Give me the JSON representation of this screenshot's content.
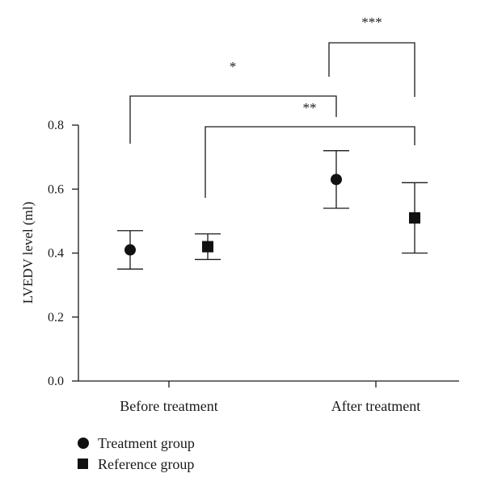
{
  "chart_data": {
    "type": "scatter",
    "title": "",
    "ylabel": "LVEDV level (ml)",
    "xlabel": "",
    "ylim": [
      0.0,
      0.8
    ],
    "yticks": [
      "0.0",
      "0.2",
      "0.4",
      "0.6",
      "0.8"
    ],
    "categories": [
      "Before treatment",
      "After treatment"
    ],
    "grid": false,
    "legend_position": "bottom-left",
    "series": [
      {
        "name": "Treatment group",
        "marker": "circle",
        "color": "#111111",
        "values": [
          0.41,
          0.63
        ],
        "error_low": [
          0.35,
          0.54
        ],
        "error_high": [
          0.47,
          0.72
        ]
      },
      {
        "name": "Reference group",
        "marker": "square",
        "color": "#111111",
        "values": [
          0.42,
          0.51
        ],
        "error_low": [
          0.38,
          0.4
        ],
        "error_high": [
          0.46,
          0.62
        ]
      }
    ],
    "significance": [
      {
        "label": "*",
        "from": "Treatment group / Before treatment",
        "to": "Treatment group / After treatment"
      },
      {
        "label": "**",
        "from": "Reference group / Before treatment",
        "to": "Reference group / After treatment"
      },
      {
        "label": "***",
        "from": "Treatment group / After treatment",
        "to": "Reference group / After treatment"
      }
    ]
  }
}
